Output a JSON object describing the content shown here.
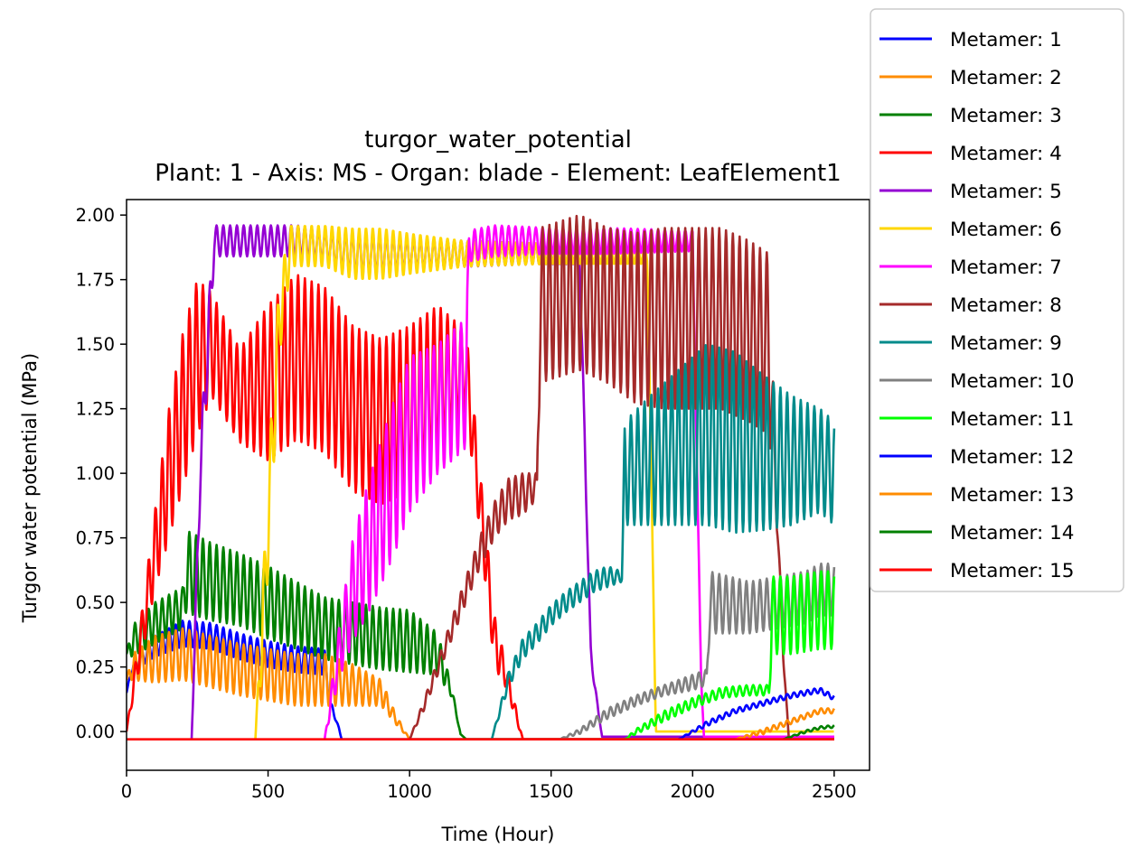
{
  "chart_data": {
    "type": "line",
    "title": "turgor_water_potential",
    "subtitle": "Plant: 1 - Axis: MS - Organ: blade - Element: LeafElement1",
    "xlabel": "Time (Hour)",
    "ylabel": "Turgor water potential (MPa)",
    "xlim": [
      0,
      2625
    ],
    "ylim": [
      -0.15,
      2.06
    ],
    "xticks": [
      0,
      500,
      1000,
      1500,
      2000,
      2500
    ],
    "xtick_labels": [
      "0",
      "500",
      "1000",
      "1500",
      "2000",
      "2500"
    ],
    "yticks": [
      0.0,
      0.25,
      0.5,
      0.75,
      1.0,
      1.25,
      1.5,
      1.75,
      2.0
    ],
    "ytick_labels": [
      "0.00",
      "0.25",
      "0.50",
      "0.75",
      "1.00",
      "1.25",
      "1.50",
      "1.75",
      "2.00"
    ],
    "grid": false,
    "legend_position": "upper-right-outside",
    "series": [
      {
        "name": "Metamer: 1",
        "color": "#0000ff",
        "env_x": [
          0,
          20,
          100,
          200,
          300,
          400,
          500,
          600,
          700,
          720,
          740,
          760,
          2500
        ],
        "env_y": [
          0.15,
          0.25,
          0.33,
          0.38,
          0.37,
          0.33,
          0.3,
          0.28,
          0.27,
          0.1,
          0.05,
          -0.03,
          -0.03
        ],
        "amp": [
          0,
          0.02,
          0.04,
          0.05,
          0.05,
          0.05,
          0.05,
          0.05,
          0.05,
          0.02,
          0.01,
          0,
          0
        ]
      },
      {
        "name": "Metamer: 2",
        "color": "#ff8c00",
        "env_x": [
          0,
          20,
          100,
          200,
          300,
          400,
          500,
          600,
          700,
          800,
          900,
          950,
          1000,
          2500
        ],
        "env_y": [
          0.2,
          0.25,
          0.28,
          0.3,
          0.27,
          0.24,
          0.22,
          0.2,
          0.2,
          0.18,
          0.15,
          0.05,
          -0.03,
          -0.03
        ],
        "amp": [
          0,
          0.05,
          0.09,
          0.1,
          0.1,
          0.1,
          0.1,
          0.1,
          0.1,
          0.08,
          0.05,
          0.02,
          0,
          0
        ]
      },
      {
        "name": "Metamer: 3",
        "color": "#008000",
        "env_x": [
          0,
          20,
          100,
          200,
          210,
          300,
          400,
          500,
          600,
          700,
          800,
          900,
          1000,
          1100,
          1150,
          1180,
          1200,
          2500
        ],
        "env_y": [
          0.3,
          0.35,
          0.42,
          0.48,
          0.62,
          0.58,
          0.55,
          0.5,
          0.45,
          0.4,
          0.38,
          0.36,
          0.35,
          0.3,
          0.15,
          -0.01,
          -0.03,
          -0.03
        ],
        "amp": [
          0,
          0.06,
          0.08,
          0.08,
          0.16,
          0.15,
          0.14,
          0.14,
          0.13,
          0.12,
          0.12,
          0.12,
          0.12,
          0.08,
          0.02,
          0,
          0,
          0
        ]
      },
      {
        "name": "Metamer: 4",
        "color": "#ff0000",
        "env_x": [
          0,
          50,
          100,
          150,
          200,
          250,
          300,
          400,
          500,
          600,
          700,
          800,
          900,
          1000,
          1100,
          1200,
          1300,
          1340,
          1380,
          1400,
          2500
        ],
        "env_y": [
          0.0,
          0.35,
          0.7,
          1.0,
          1.25,
          1.45,
          1.5,
          1.3,
          1.35,
          1.45,
          1.4,
          1.25,
          1.2,
          1.25,
          1.35,
          1.4,
          0.35,
          0.22,
          0.05,
          -0.03,
          -0.03
        ],
        "amp": [
          0,
          0.08,
          0.15,
          0.25,
          0.3,
          0.3,
          0.2,
          0.18,
          0.3,
          0.32,
          0.32,
          0.32,
          0.32,
          0.32,
          0.3,
          0.15,
          0.1,
          0.05,
          0.02,
          0,
          0
        ]
      },
      {
        "name": "Metamer: 5",
        "color": "#9400d3",
        "env_x": [
          230,
          260,
          290,
          310,
          330,
          600,
          700,
          800,
          900,
          1000,
          1200,
          1450,
          1600,
          1640,
          1670,
          1680,
          2500
        ],
        "env_y": [
          -0.03,
          1.0,
          1.55,
          1.9,
          1.9,
          1.9,
          1.88,
          1.85,
          1.85,
          1.85,
          1.85,
          1.85,
          1.85,
          0.3,
          0.05,
          -0.02,
          -0.02
        ],
        "amp": [
          0,
          0.1,
          0.12,
          0.06,
          0.06,
          0.06,
          0.06,
          0.08,
          0.08,
          0.06,
          0.05,
          0.04,
          0.04,
          0.03,
          0,
          0,
          0
        ]
      },
      {
        "name": "Metamer: 6",
        "color": "#ffd700",
        "env_x": [
          455,
          480,
          510,
          540,
          580,
          700,
          800,
          900,
          1000,
          1200,
          1500,
          1840,
          1870,
          2500
        ],
        "env_y": [
          -0.03,
          0.4,
          1.0,
          1.6,
          1.88,
          1.88,
          1.85,
          1.85,
          1.85,
          1.85,
          1.85,
          1.85,
          0.0,
          -0.0
        ],
        "amp": [
          0,
          0.15,
          0.2,
          0.15,
          0.08,
          0.08,
          0.1,
          0.1,
          0.08,
          0.05,
          0.04,
          0.04,
          0,
          0
        ]
      },
      {
        "name": "Metamer: 7",
        "color": "#ff00ff",
        "env_x": [
          700,
          750,
          800,
          850,
          900,
          950,
          1000,
          1100,
          1200,
          1210,
          1300,
          1500,
          1700,
          2000,
          2030,
          2040,
          2500
        ],
        "env_y": [
          -0.03,
          0.3,
          0.55,
          0.7,
          0.85,
          1.0,
          1.15,
          1.25,
          1.35,
          1.88,
          1.9,
          1.9,
          1.9,
          1.9,
          0.2,
          -0.02,
          -0.02
        ],
        "amp": [
          0,
          0.1,
          0.2,
          0.25,
          0.28,
          0.3,
          0.3,
          0.25,
          0.25,
          0.06,
          0.06,
          0.05,
          0.05,
          0.04,
          0,
          0,
          0
        ]
      },
      {
        "name": "Metamer: 8",
        "color": "#a52a2a",
        "env_x": [
          1000,
          1050,
          1100,
          1150,
          1200,
          1250,
          1300,
          1350,
          1400,
          1450,
          1460,
          1600,
          1700,
          1800,
          1900,
          2000,
          2100,
          2200,
          2270,
          2300,
          2320,
          2340,
          2500
        ],
        "env_y": [
          -0.03,
          0.1,
          0.25,
          0.4,
          0.55,
          0.7,
          0.82,
          0.9,
          0.92,
          0.95,
          1.65,
          1.7,
          1.65,
          1.6,
          1.6,
          1.6,
          1.6,
          1.55,
          1.5,
          0.8,
          0.3,
          -0.03,
          -0.03
        ],
        "amp": [
          0,
          0.02,
          0.03,
          0.04,
          0.05,
          0.06,
          0.07,
          0.08,
          0.08,
          0.05,
          0.3,
          0.3,
          0.3,
          0.33,
          0.35,
          0.35,
          0.35,
          0.35,
          0.35,
          0.05,
          0.02,
          0,
          0
        ]
      },
      {
        "name": "Metamer: 9",
        "color": "#008b8b",
        "env_x": [
          1290,
          1350,
          1400,
          1450,
          1500,
          1550,
          1600,
          1650,
          1700,
          1750,
          1760,
          1850,
          1950,
          2050,
          2150,
          2250,
          2350,
          2450,
          2500
        ],
        "env_y": [
          -0.03,
          0.2,
          0.32,
          0.38,
          0.45,
          0.5,
          0.54,
          0.58,
          0.6,
          0.6,
          1.0,
          1.05,
          1.1,
          1.15,
          1.12,
          1.08,
          1.05,
          1.05,
          1.0
        ],
        "amp": [
          0,
          0.03,
          0.04,
          0.04,
          0.04,
          0.04,
          0.04,
          0.04,
          0.04,
          0.02,
          0.2,
          0.25,
          0.3,
          0.35,
          0.35,
          0.3,
          0.25,
          0.2,
          0.2
        ]
      },
      {
        "name": "Metamer: 10",
        "color": "#808080",
        "env_x": [
          1530,
          1600,
          1700,
          1800,
          1900,
          2000,
          2050,
          2060,
          2200,
          2300,
          2400,
          2450,
          2500
        ],
        "env_y": [
          -0.03,
          0.0,
          0.07,
          0.12,
          0.16,
          0.19,
          0.21,
          0.5,
          0.48,
          0.5,
          0.52,
          0.55,
          0.55
        ],
        "amp": [
          0,
          0.01,
          0.02,
          0.02,
          0.02,
          0.03,
          0.03,
          0.12,
          0.1,
          0.1,
          0.1,
          0.1,
          0.1
        ]
      },
      {
        "name": "Metamer: 11",
        "color": "#00ff00",
        "env_x": [
          1760,
          1800,
          1900,
          2000,
          2100,
          2200,
          2270,
          2280,
          2350,
          2450,
          2500
        ],
        "env_y": [
          -0.03,
          0.0,
          0.06,
          0.11,
          0.15,
          0.16,
          0.16,
          0.45,
          0.45,
          0.47,
          0.47
        ],
        "amp": [
          0,
          0.01,
          0.02,
          0.02,
          0.02,
          0.02,
          0.02,
          0.15,
          0.15,
          0.15,
          0.15
        ]
      },
      {
        "name": "Metamer: 12",
        "color": "#0000ff",
        "env_x": [
          1950,
          2050,
          2150,
          2250,
          2350,
          2450,
          2500
        ],
        "env_y": [
          -0.03,
          0.03,
          0.08,
          0.11,
          0.14,
          0.16,
          0.13
        ],
        "amp": [
          0,
          0.01,
          0.01,
          0.01,
          0.01,
          0.01,
          0.01
        ]
      },
      {
        "name": "Metamer: 13",
        "color": "#ff8c00",
        "env_x": [
          2150,
          2250,
          2350,
          2450,
          2500
        ],
        "env_y": [
          -0.03,
          0.0,
          0.04,
          0.08,
          0.08
        ],
        "amp": [
          0,
          0.01,
          0.01,
          0.01,
          0.01
        ]
      },
      {
        "name": "Metamer: 14",
        "color": "#008000",
        "env_x": [
          2320,
          2400,
          2450,
          2500
        ],
        "env_y": [
          -0.03,
          0.0,
          0.015,
          0.02
        ],
        "amp": [
          0,
          0.005,
          0.005,
          0.005
        ]
      },
      {
        "name": "Metamer: 15",
        "color": "#ff0000",
        "env_x": [
          0,
          2500
        ],
        "env_y": [
          -0.03,
          -0.03
        ],
        "amp": [
          0,
          0
        ]
      }
    ]
  }
}
